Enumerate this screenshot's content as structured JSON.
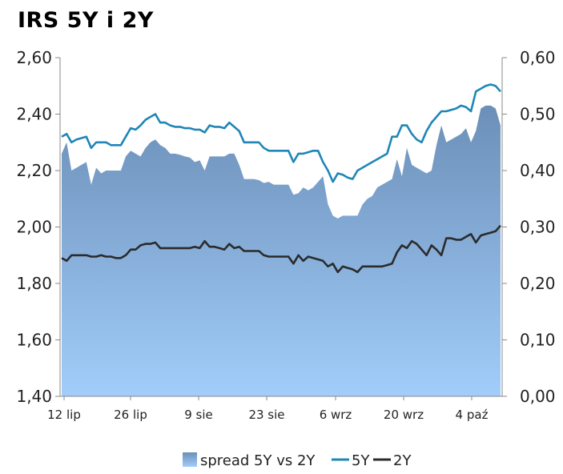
{
  "chart_data": {
    "type": "line",
    "title": "IRS 5Y i 2Y",
    "y_left": {
      "lim": [
        1.4,
        2.6
      ],
      "ticks": [
        "1,40",
        "1,60",
        "1,80",
        "2,00",
        "2,20",
        "2,40",
        "2,60"
      ]
    },
    "y_right": {
      "lim": [
        0.0,
        0.6
      ],
      "ticks": [
        "0,00",
        "0,10",
        "0,20",
        "0,30",
        "0,40",
        "0,50",
        "0,60"
      ]
    },
    "x_ticks": [
      "12 lip",
      "26 lip",
      "9 sie",
      "23 sie",
      "6 wrz",
      "20 wrz",
      "4 paź"
    ],
    "grid": false,
    "legend_position": "bottom",
    "colors": {
      "area_top": "#6b8fb8",
      "area_bottom": "#a2cdfa",
      "line_5y": "#1f86b7",
      "line_2y": "#2b2b2b"
    },
    "series": [
      {
        "name": "spread 5Y vs 2Y",
        "axis": "right",
        "kind": "area",
        "values": [
          0.43,
          0.45,
          0.4,
          0.405,
          0.41,
          0.415,
          0.375,
          0.405,
          0.395,
          0.4,
          0.4,
          0.4,
          0.4,
          0.425,
          0.435,
          0.43,
          0.425,
          0.44,
          0.45,
          0.455,
          0.445,
          0.44,
          0.43,
          0.43,
          0.428,
          0.425,
          0.423,
          0.415,
          0.418,
          0.4,
          0.425,
          0.425,
          0.425,
          0.425,
          0.43,
          0.43,
          0.41,
          0.385,
          0.385,
          0.385,
          0.383,
          0.378,
          0.38,
          0.375,
          0.375,
          0.375,
          0.375,
          0.357,
          0.36,
          0.37,
          0.365,
          0.37,
          0.38,
          0.39,
          0.34,
          0.32,
          0.315,
          0.32,
          0.32,
          0.32,
          0.32,
          0.34,
          0.35,
          0.355,
          0.37,
          0.375,
          0.38,
          0.385,
          0.42,
          0.39,
          0.44,
          0.41,
          0.405,
          0.4,
          0.395,
          0.4,
          0.445,
          0.48,
          0.45,
          0.455,
          0.46,
          0.465,
          0.475,
          0.45,
          0.47,
          0.51,
          0.515,
          0.515,
          0.51,
          0.48
        ]
      },
      {
        "name": "5Y",
        "axis": "left",
        "kind": "line",
        "values": [
          2.32,
          2.33,
          2.3,
          2.31,
          2.315,
          2.32,
          2.28,
          2.3,
          2.3,
          2.3,
          2.29,
          2.29,
          2.29,
          2.32,
          2.35,
          2.345,
          2.36,
          2.38,
          2.39,
          2.4,
          2.37,
          2.37,
          2.36,
          2.355,
          2.355,
          2.35,
          2.35,
          2.345,
          2.345,
          2.335,
          2.36,
          2.355,
          2.355,
          2.35,
          2.37,
          2.355,
          2.34,
          2.3,
          2.3,
          2.3,
          2.3,
          2.28,
          2.27,
          2.27,
          2.27,
          2.27,
          2.27,
          2.23,
          2.26,
          2.26,
          2.265,
          2.27,
          2.27,
          2.23,
          2.2,
          2.16,
          2.19,
          2.185,
          2.175,
          2.17,
          2.2,
          2.21,
          2.22,
          2.23,
          2.24,
          2.25,
          2.26,
          2.32,
          2.32,
          2.36,
          2.36,
          2.33,
          2.31,
          2.3,
          2.34,
          2.37,
          2.39,
          2.41,
          2.41,
          2.415,
          2.42,
          2.43,
          2.425,
          2.41,
          2.48,
          2.49,
          2.5,
          2.505,
          2.5,
          2.48
        ]
      },
      {
        "name": "2Y",
        "axis": "left",
        "kind": "line",
        "values": [
          1.89,
          1.88,
          1.9,
          1.9,
          1.9,
          1.9,
          1.895,
          1.895,
          1.9,
          1.895,
          1.895,
          1.89,
          1.89,
          1.9,
          1.92,
          1.92,
          1.935,
          1.94,
          1.94,
          1.945,
          1.925,
          1.925,
          1.925,
          1.925,
          1.925,
          1.925,
          1.925,
          1.93,
          1.925,
          1.95,
          1.93,
          1.93,
          1.925,
          1.92,
          1.94,
          1.925,
          1.93,
          1.915,
          1.915,
          1.915,
          1.915,
          1.9,
          1.895,
          1.895,
          1.895,
          1.895,
          1.895,
          1.87,
          1.9,
          1.88,
          1.895,
          1.89,
          1.885,
          1.88,
          1.86,
          1.87,
          1.84,
          1.86,
          1.855,
          1.85,
          1.84,
          1.86,
          1.86,
          1.86,
          1.86,
          1.86,
          1.865,
          1.87,
          1.91,
          1.935,
          1.925,
          1.95,
          1.94,
          1.92,
          1.9,
          1.935,
          1.92,
          1.9,
          1.96,
          1.96,
          1.955,
          1.955,
          1.965,
          1.975,
          1.945,
          1.97,
          1.975,
          1.98,
          1.985,
          2.005
        ]
      }
    ]
  }
}
